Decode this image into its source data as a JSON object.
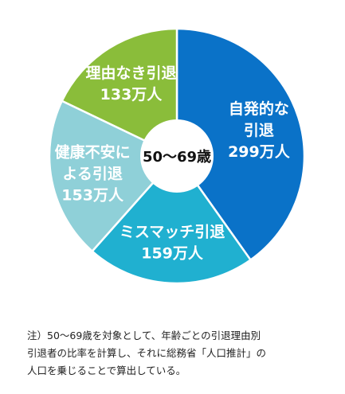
{
  "chart_data": {
    "type": "pie",
    "donut": true,
    "center_label": "50〜69歳",
    "slices": [
      {
        "name_lines": [
          "自発的な",
          "引退"
        ],
        "value": 299,
        "value_label": "299万人",
        "color": "#0a72c8"
      },
      {
        "name_lines": [
          "ミスマッチ引退"
        ],
        "value": 159,
        "value_label": "159万人",
        "color": "#20b0d0"
      },
      {
        "name_lines": [
          "健康不安に",
          "よる引退"
        ],
        "value": 153,
        "value_label": "153万人",
        "color": "#8fd0d8"
      },
      {
        "name_lines": [
          "理由なき引退"
        ],
        "value": 133,
        "value_label": "133万人",
        "color": "#8abd3a"
      }
    ]
  },
  "note": {
    "lines": [
      "注）50〜69歳を対象として、年齢ごとの引退理由別",
      "引退者の比率を計算し、それに総務省「人口推計」の",
      "人口を乗じることで算出している。"
    ]
  }
}
